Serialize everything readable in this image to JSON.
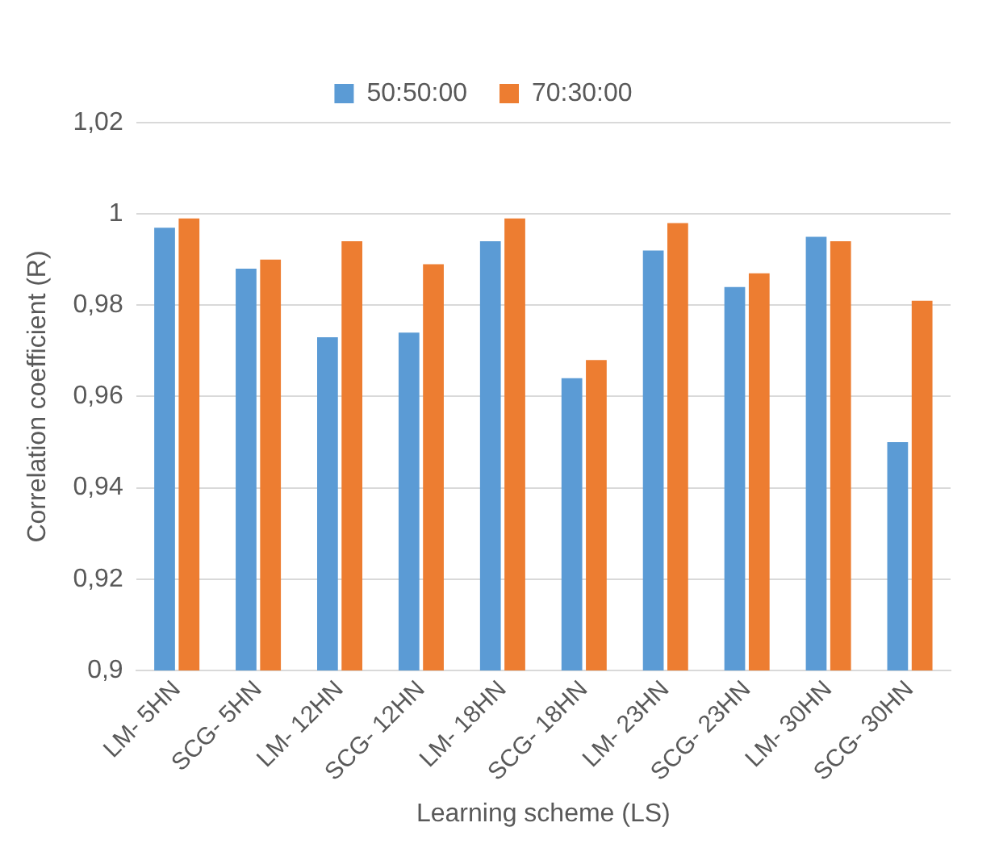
{
  "chart_data": {
    "type": "bar",
    "xlabel": "Learning scheme (LS)",
    "ylabel": "Correlation coefficient (R)",
    "categories": [
      "LM- 5HN",
      "SCG- 5HN",
      "LM- 12HN",
      "SCG- 12HN",
      "LM- 18HN",
      "SCG- 18HN",
      "LM- 23HN",
      "SCG- 23HN",
      "LM- 30HN",
      "SCG- 30HN"
    ],
    "series": [
      {
        "name": "50:50:00",
        "color": "#5b9bd5",
        "values": [
          0.997,
          0.988,
          0.973,
          0.974,
          0.994,
          0.964,
          0.992,
          0.984,
          0.995,
          0.95
        ]
      },
      {
        "name": "70:30:00",
        "color": "#ed7d31",
        "values": [
          0.999,
          0.99,
          0.994,
          0.989,
          0.999,
          0.968,
          0.998,
          0.987,
          0.994,
          0.981
        ]
      }
    ],
    "ylim": [
      0.9,
      1.02
    ],
    "yticks": [
      {
        "value": 0.9,
        "label": "0,9"
      },
      {
        "value": 0.92,
        "label": "0,92"
      },
      {
        "value": 0.94,
        "label": "0,94"
      },
      {
        "value": 0.96,
        "label": "0,96"
      },
      {
        "value": 0.98,
        "label": "0,98"
      },
      {
        "value": 1,
        "label": "1"
      },
      {
        "value": 1.02,
        "label": "1,02"
      }
    ],
    "grid": "y",
    "legend": "top"
  }
}
